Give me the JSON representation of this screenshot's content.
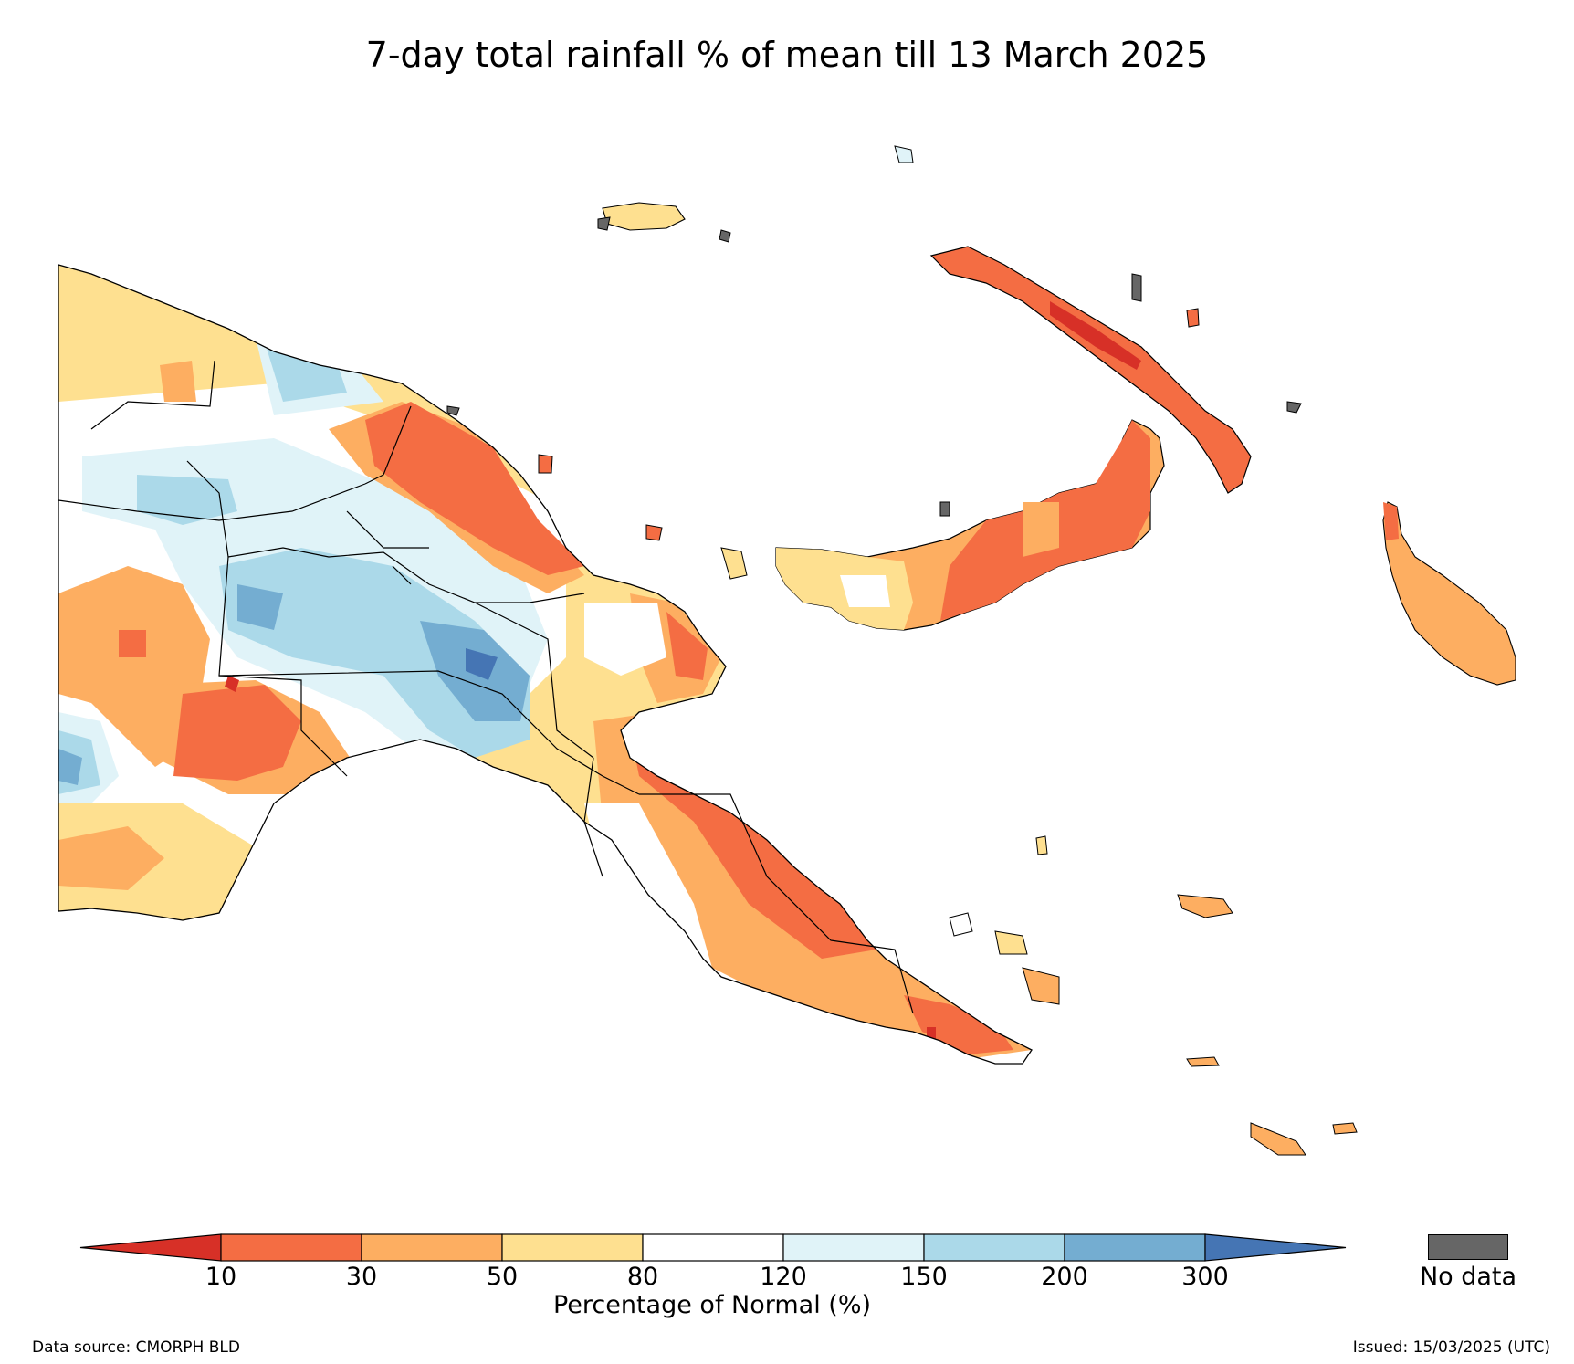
{
  "title": "7-day total rainfall % of mean till 13 March 2025",
  "legend": {
    "ticks": [
      "10",
      "30",
      "50",
      "80",
      "120",
      "150",
      "200",
      "300"
    ],
    "title": "Percentage of Normal (%)",
    "bins": [
      {
        "range": "<10",
        "color": "#d73027"
      },
      {
        "range": "10-30",
        "color": "#f46d43"
      },
      {
        "range": "30-50",
        "color": "#fdae61"
      },
      {
        "range": "50-80",
        "color": "#fee090"
      },
      {
        "range": "80-120",
        "color": "#ffffff"
      },
      {
        "range": "120-150",
        "color": "#e0f3f8"
      },
      {
        "range": "150-200",
        "color": "#abd9e9"
      },
      {
        "range": "200-300",
        "color": "#74add1"
      },
      {
        "range": ">300",
        "color": "#4575b4"
      }
    ],
    "no_data_label": "No data",
    "no_data_color": "#666666"
  },
  "footer": {
    "source": "Data source: CMORPH BLD",
    "issued": "Issued: 15/03/2025 (UTC)"
  }
}
